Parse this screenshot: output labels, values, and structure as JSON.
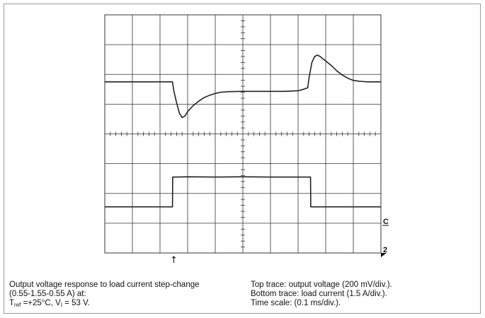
{
  "chart_data": {
    "type": "line",
    "title": "",
    "x_range": [
      0,
      1
    ],
    "y_range": [
      0,
      8
    ],
    "grid": true,
    "series": [
      {
        "name": "output voltage",
        "x": [
          0,
          0.245,
          0.25,
          0.26,
          0.27,
          0.28,
          0.29,
          0.3,
          0.32,
          0.34,
          0.36,
          0.38,
          0.4,
          0.42,
          0.45,
          0.5,
          0.55,
          0.6,
          0.65,
          0.7,
          0.72,
          0.735,
          0.74,
          0.75,
          0.76,
          0.77,
          0.78,
          0.79,
          0.8,
          0.82,
          0.84,
          0.86,
          0.88,
          0.9,
          0.92,
          0.95,
          1.0
        ],
        "y": [
          5.75,
          5.75,
          5.45,
          5.05,
          4.7,
          4.55,
          4.6,
          4.75,
          4.95,
          5.1,
          5.22,
          5.3,
          5.36,
          5.4,
          5.42,
          5.43,
          5.43,
          5.43,
          5.43,
          5.45,
          5.5,
          5.55,
          5.9,
          6.4,
          6.6,
          6.65,
          6.6,
          6.52,
          6.45,
          6.3,
          6.12,
          5.98,
          5.87,
          5.8,
          5.77,
          5.75,
          5.75
        ]
      },
      {
        "name": "load current",
        "x": [
          0,
          0.245,
          0.246,
          0.3,
          0.4,
          0.5,
          0.6,
          0.7,
          0.745,
          0.746,
          0.8,
          0.9,
          1.0
        ],
        "y": [
          1.55,
          1.55,
          2.55,
          2.56,
          2.55,
          2.56,
          2.55,
          2.55,
          2.55,
          1.55,
          1.55,
          1.55,
          1.55
        ]
      }
    ],
    "markers": {
      "ground_marker": "C",
      "channel_marker": "2",
      "trigger_marker": "↑"
    }
  },
  "caption_left": {
    "line1": "Output voltage response to load current step-change",
    "line2": "(0.55-1.55-0.55 A) at:",
    "line3_prefix": "T",
    "line3_sub": "ref",
    "line3_mid": " =+25°C, V",
    "line3_sub2": "I",
    "line3_suffix": " = 53 V."
  },
  "caption_right": {
    "line1": "Top trace: output voltage (200 mV/div.).",
    "line2": "Bottom trace: load current (1.5 A/div.).",
    "line3": "Time scale: (0.1 ms/div.)."
  },
  "colors": {
    "trace": "#222222",
    "grid": "#333333",
    "dotted": "#555555"
  }
}
